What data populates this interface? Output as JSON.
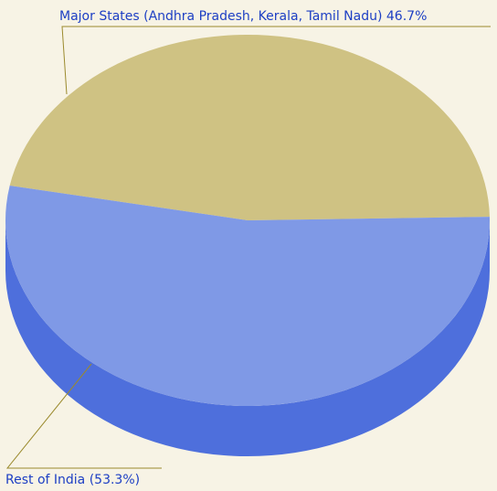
{
  "chart_data": {
    "type": "pie",
    "categories": [
      "Major States (Andhra Pradesh, Kerala, Tamil Nadu)",
      "Rest of India"
    ],
    "values": [
      46.7,
      53.3
    ],
    "value_labels": [
      "46.7%",
      "(53.3%)"
    ],
    "colors": [
      "#cfc283",
      "#7f99e6"
    ],
    "side_colors": [
      "#b3a564",
      "#4e6fdc"
    ]
  }
}
